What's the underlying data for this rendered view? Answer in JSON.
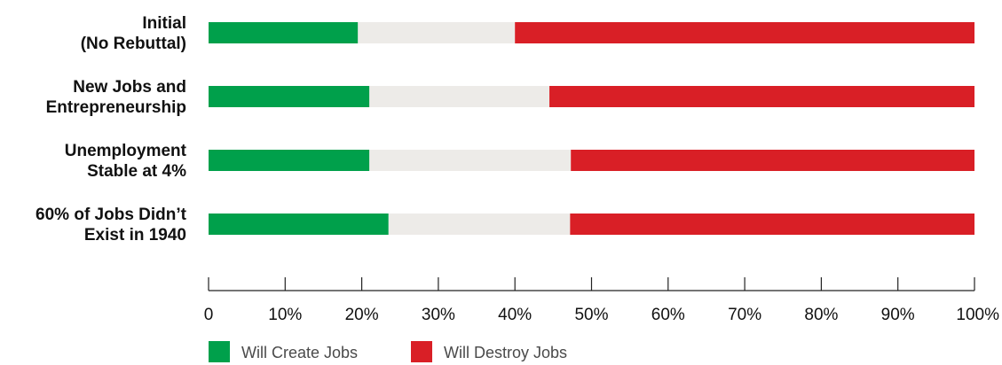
{
  "chart_data": {
    "type": "bar",
    "orientation": "horizontal",
    "stacked": true,
    "categories": [
      [
        "Initial",
        "(No Rebuttal)"
      ],
      [
        "New Jobs and",
        "Entrepreneurship"
      ],
      [
        "Unemployment",
        "Stable at 4%"
      ],
      [
        "60% of Jobs Didn’t",
        "Exist in 1940"
      ]
    ],
    "series": [
      {
        "name": "Will Create Jobs",
        "color": "#00A04B",
        "values": [
          19.5,
          21,
          21,
          23.5
        ]
      },
      {
        "name": "",
        "color": "#EDEBE8",
        "values": [
          20.5,
          23.5,
          26.3,
          23.7
        ]
      },
      {
        "name": "Will Destroy Jobs",
        "color": "#D91F26",
        "values": [
          60,
          55.5,
          52.7,
          52.8
        ]
      }
    ],
    "xlim": [
      0,
      100
    ],
    "xticks": [
      "0",
      "10%",
      "20%",
      "30%",
      "40%",
      "50%",
      "60%",
      "70%",
      "80%",
      "90%",
      "100%"
    ],
    "grid": false,
    "legend_position": "bottom-left",
    "legend": [
      {
        "name": "Will Create Jobs",
        "color": "#00A04B"
      },
      {
        "name": "Will Destroy Jobs",
        "color": "#D91F26"
      }
    ],
    "title": "",
    "xlabel": "",
    "ylabel": ""
  }
}
